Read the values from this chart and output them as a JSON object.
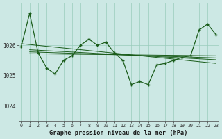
{
  "bg_color": "#cce8e4",
  "grid_color": "#99ccbb",
  "line_color": "#1a5c1a",
  "title": "Graphe pression niveau de la mer (hPa)",
  "ylim": [
    1023.5,
    1027.4
  ],
  "yticks": [
    1024,
    1025,
    1026
  ],
  "xlim": [
    -0.3,
    23.3
  ],
  "xticks": [
    0,
    1,
    2,
    3,
    4,
    5,
    6,
    7,
    8,
    9,
    10,
    11,
    12,
    13,
    14,
    15,
    16,
    17,
    18,
    19,
    20,
    21,
    22,
    23
  ],
  "main_x": [
    0,
    1,
    2,
    3,
    4,
    5,
    6,
    7,
    8,
    9,
    10,
    11,
    12,
    13,
    14,
    15,
    16,
    17,
    18,
    19,
    20,
    21,
    22,
    23
  ],
  "main_y": [
    1025.95,
    1027.05,
    1025.75,
    1025.25,
    1025.05,
    1025.5,
    1025.65,
    1026.0,
    1026.2,
    1026.0,
    1026.1,
    1025.75,
    1025.5,
    1024.7,
    1024.8,
    1024.7,
    1025.35,
    1025.4,
    1025.5,
    1025.6,
    1025.65,
    1026.5,
    1026.7,
    1026.35
  ],
  "trend_lines": [
    [
      [
        0,
        1026.05
      ],
      [
        23,
        1025.4
      ]
    ],
    [
      [
        1,
        1025.85
      ],
      [
        23,
        1025.52
      ]
    ],
    [
      [
        1,
        1025.78
      ],
      [
        23,
        1025.58
      ]
    ],
    [
      [
        1,
        1025.72
      ],
      [
        23,
        1025.65
      ]
    ]
  ]
}
